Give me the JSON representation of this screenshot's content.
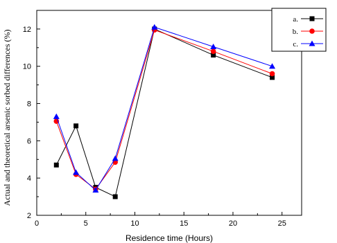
{
  "chart_data": {
    "type": "line",
    "xlabel": "Residence time (Hours)",
    "ylabel": "Actual and theoretical arsenic sorbed differences (%)",
    "xlim": [
      0,
      27
    ],
    "ylim": [
      2,
      13
    ],
    "xticks": [
      0,
      5,
      10,
      15,
      20,
      25
    ],
    "yticks": [
      2,
      4,
      6,
      8,
      10,
      12
    ],
    "grid": false,
    "legend_position": "top-right",
    "series": [
      {
        "name": "a.",
        "color": "#000000",
        "marker": "square",
        "x": [
          2,
          4,
          6,
          8,
          12,
          18,
          24
        ],
        "y": [
          4.7,
          6.8,
          3.5,
          3.0,
          12.0,
          10.6,
          9.4
        ]
      },
      {
        "name": "b.",
        "color": "#ff0000",
        "marker": "circle",
        "x": [
          2,
          4,
          6,
          8,
          12,
          18,
          24
        ],
        "y": [
          7.05,
          4.2,
          3.4,
          4.85,
          11.95,
          10.8,
          9.6
        ]
      },
      {
        "name": "c.",
        "color": "#0000ff",
        "marker": "triangle",
        "x": [
          2,
          4,
          6,
          8,
          12,
          18,
          24
        ],
        "y": [
          7.3,
          4.3,
          3.35,
          5.05,
          12.1,
          11.05,
          10.0
        ]
      }
    ]
  }
}
